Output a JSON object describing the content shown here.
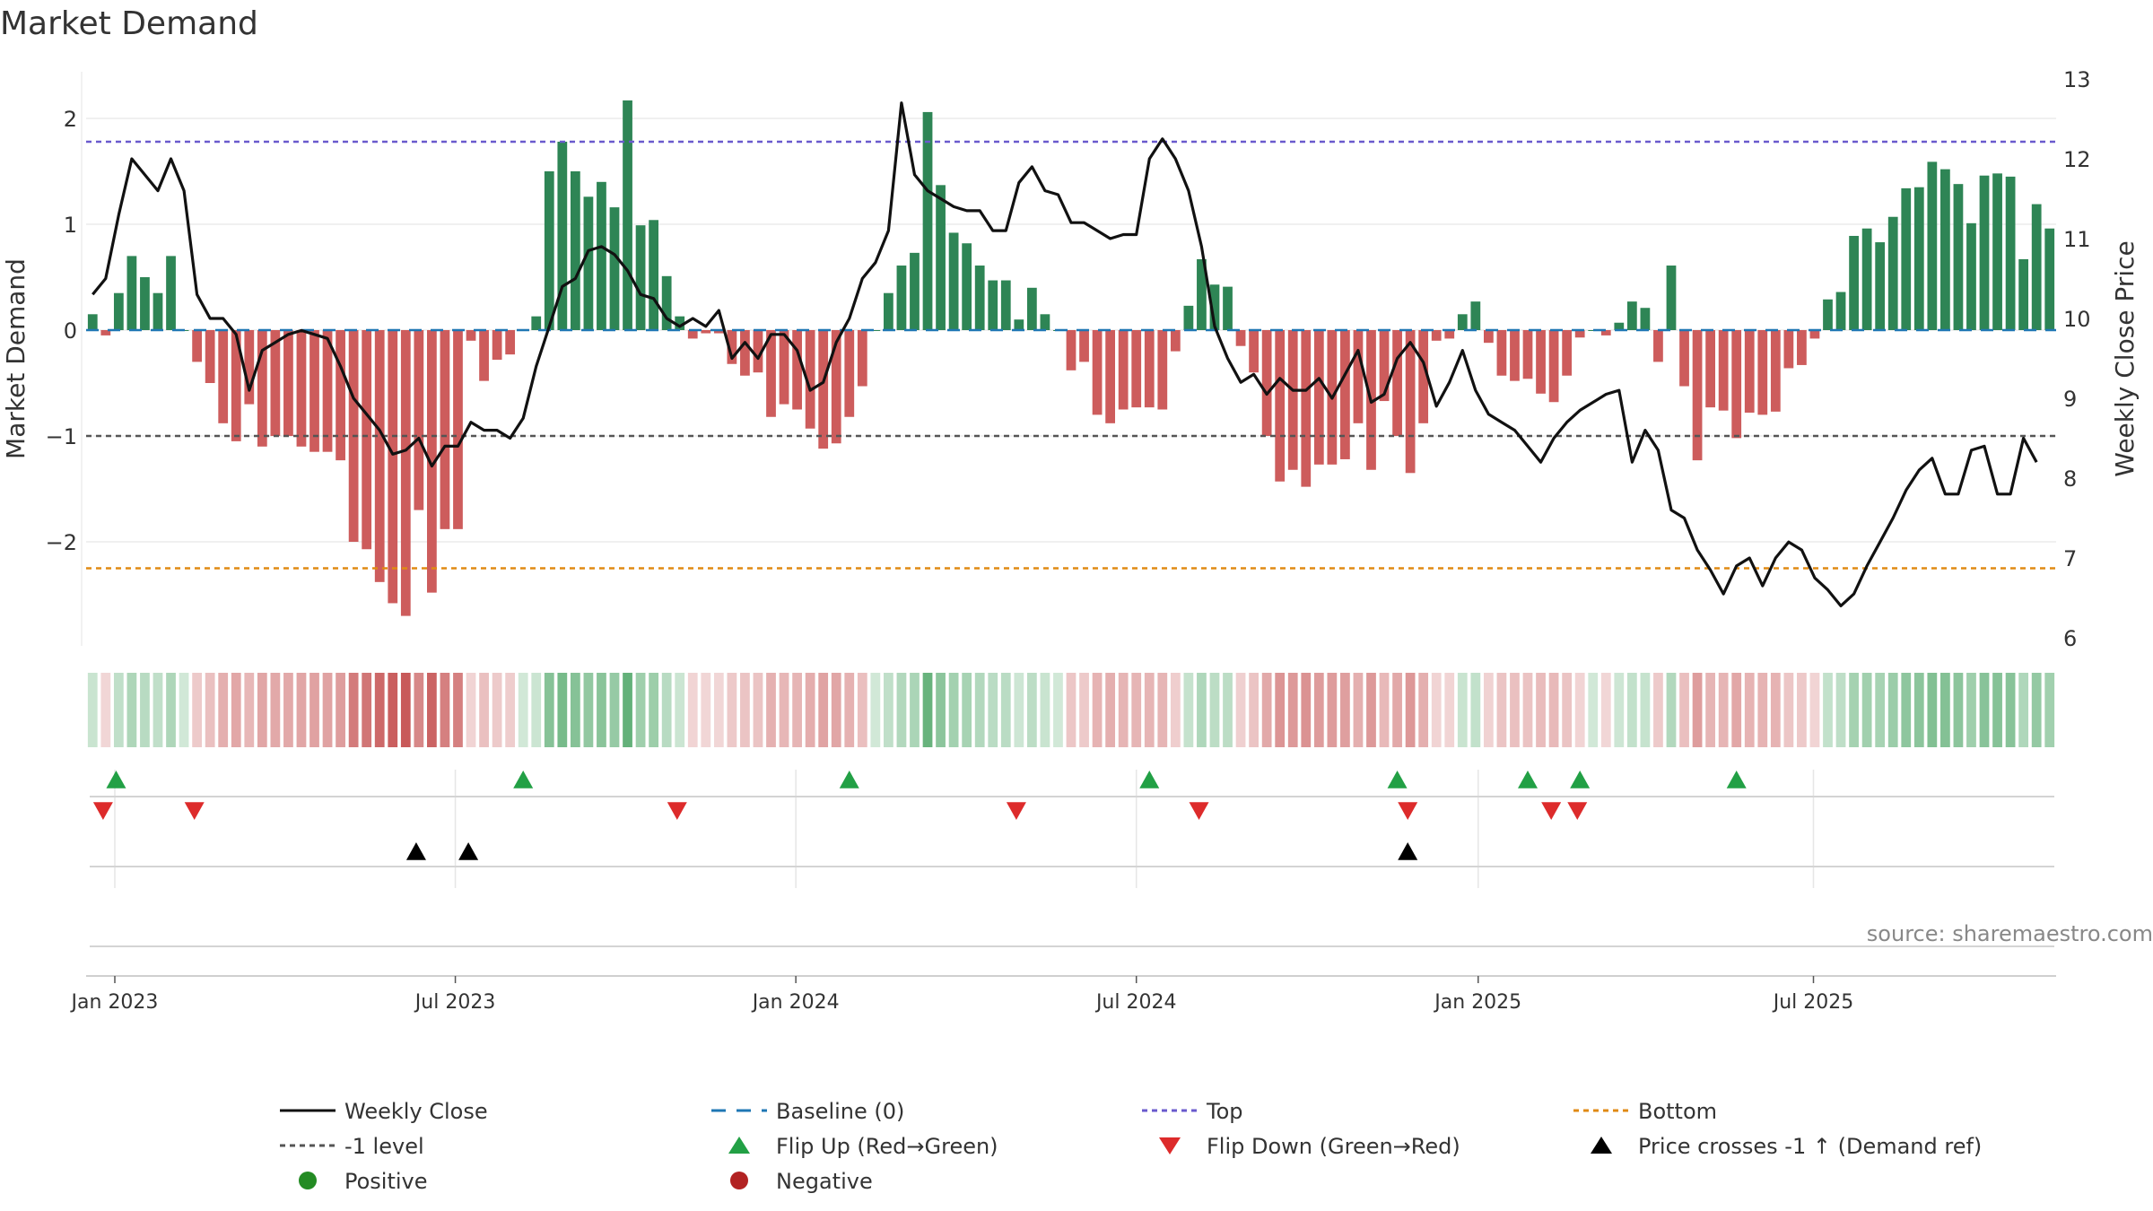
{
  "chart_data": {
    "type": "bar+line",
    "title": "Market Demand",
    "ylabel_left": "Market Demand",
    "ylabel_right": "Weekly Close Price",
    "source": "source: sharemaestro.com",
    "ylim_left": [
      -3.0,
      2.3
    ],
    "ylim_right": [
      6,
      13
    ],
    "left_ticks": [
      {
        "v": 2,
        "l": "2"
      },
      {
        "v": 1,
        "l": "1"
      },
      {
        "v": 0,
        "l": "0"
      },
      {
        "v": -1,
        "l": "−1"
      },
      {
        "v": -2,
        "l": "−2"
      }
    ],
    "right_ticks": [
      {
        "v": 13,
        "l": "13"
      },
      {
        "v": 12,
        "l": "12"
      },
      {
        "v": 11,
        "l": "11"
      },
      {
        "v": 10,
        "l": "10"
      },
      {
        "v": 9,
        "l": "9"
      },
      {
        "v": 8,
        "l": "8"
      },
      {
        "v": 7,
        "l": "7"
      },
      {
        "v": 6,
        "l": "6"
      }
    ],
    "x_ticks": [
      {
        "week": 2.2,
        "label": "Jan 2023"
      },
      {
        "week": 28.3,
        "label": "Jul 2023"
      },
      {
        "week": 54.4,
        "label": "Jan 2024"
      },
      {
        "week": 80.5,
        "label": "Jul 2024"
      },
      {
        "week": 106.7,
        "label": "Jan 2025"
      },
      {
        "week": 132.4,
        "label": "Jul 2025"
      }
    ],
    "reference_lines": {
      "top": 1.78,
      "minus1": -1.0,
      "bottom": -2.25,
      "baseline": 0
    },
    "demand": [
      0.15,
      -0.05,
      0.35,
      0.7,
      0.5,
      0.35,
      0.7,
      0.0,
      -0.3,
      -0.5,
      -0.88,
      -1.05,
      -0.7,
      -1.1,
      -1.0,
      -1.0,
      -1.1,
      -1.15,
      -1.15,
      -1.23,
      -2.0,
      -2.07,
      -2.38,
      -2.58,
      -2.7,
      -1.7,
      -2.48,
      -1.88,
      -1.88,
      -0.1,
      -0.48,
      -0.28,
      -0.23,
      0.0,
      0.13,
      1.5,
      1.78,
      1.5,
      1.26,
      1.4,
      1.16,
      2.17,
      0.99,
      1.04,
      0.51,
      0.13,
      -0.08,
      -0.03,
      -0.03,
      -0.32,
      -0.43,
      -0.4,
      -0.82,
      -0.7,
      -0.75,
      -0.93,
      -1.12,
      -1.07,
      -0.82,
      -0.53,
      0.0,
      0.35,
      0.61,
      0.73,
      2.06,
      1.37,
      0.92,
      0.82,
      0.61,
      0.47,
      0.47,
      0.1,
      0.4,
      0.15,
      0.0,
      -0.38,
      -0.3,
      -0.8,
      -0.88,
      -0.75,
      -0.73,
      -0.73,
      -0.75,
      -0.2,
      0.23,
      0.67,
      0.43,
      0.41,
      -0.15,
      -0.4,
      -1.0,
      -1.43,
      -1.32,
      -1.48,
      -1.27,
      -1.27,
      -1.22,
      -0.88,
      -1.32,
      -0.67,
      -1.0,
      -1.35,
      -0.88,
      -0.1,
      -0.08,
      0.15,
      0.27,
      -0.12,
      -0.43,
      -0.48,
      -0.46,
      -0.6,
      -0.68,
      -0.43,
      -0.07,
      0.0,
      -0.05,
      0.07,
      0.27,
      0.21,
      -0.3,
      0.61,
      -0.53,
      -1.23,
      -0.73,
      -0.76,
      -1.02,
      -0.78,
      -0.8,
      -0.77,
      -0.36,
      -0.33,
      -0.08,
      0.29,
      0.36,
      0.89,
      0.96,
      0.83,
      1.07,
      1.34,
      1.35,
      1.59,
      1.52,
      1.38,
      1.01,
      1.46,
      1.48,
      1.45,
      0.67,
      1.19,
      0.96
    ],
    "close": [
      10.3,
      10.5,
      11.3,
      12.0,
      11.8,
      11.6,
      12.0,
      11.6,
      10.3,
      10.0,
      10.0,
      9.8,
      9.1,
      9.6,
      9.7,
      9.8,
      9.85,
      9.8,
      9.75,
      9.4,
      9.0,
      8.8,
      8.6,
      8.3,
      8.35,
      8.5,
      8.15,
      8.4,
      8.4,
      8.7,
      8.6,
      8.6,
      8.5,
      8.75,
      9.4,
      9.9,
      10.4,
      10.5,
      10.85,
      10.9,
      10.8,
      10.6,
      10.3,
      10.25,
      10.0,
      9.9,
      10.0,
      9.9,
      10.1,
      9.5,
      9.7,
      9.5,
      9.8,
      9.8,
      9.6,
      9.1,
      9.2,
      9.7,
      10.0,
      10.5,
      10.7,
      11.1,
      12.7,
      11.8,
      11.6,
      11.5,
      11.4,
      11.35,
      11.35,
      11.1,
      11.1,
      11.7,
      11.9,
      11.6,
      11.55,
      11.2,
      11.2,
      11.1,
      11.0,
      11.05,
      11.05,
      12.0,
      12.25,
      12.0,
      11.6,
      10.9,
      9.9,
      9.5,
      9.2,
      9.3,
      9.05,
      9.25,
      9.1,
      9.1,
      9.25,
      9.0,
      9.3,
      9.6,
      8.95,
      9.05,
      9.5,
      9.7,
      9.45,
      8.9,
      9.2,
      9.6,
      9.1,
      8.8,
      8.7,
      8.6,
      8.4,
      8.2,
      8.5,
      8.7,
      8.85,
      8.95,
      9.05,
      9.1,
      8.2,
      8.6,
      8.35,
      7.6,
      7.5,
      7.1,
      6.85,
      6.55,
      6.9,
      7.0,
      6.65,
      7.0,
      7.2,
      7.1,
      6.75,
      6.6,
      6.4,
      6.55,
      6.9,
      7.2,
      7.5,
      7.85,
      8.1,
      8.25,
      7.8,
      7.8,
      8.35,
      8.4,
      7.8,
      7.8,
      8.5,
      8.2
    ],
    "flip_up_weeks": [
      2.3,
      33.5,
      58.5,
      81.5,
      100.5,
      110.5,
      114.5,
      126.5
    ],
    "flip_down_weeks": [
      1.3,
      8.3,
      45.3,
      71.3,
      85.3,
      101.3,
      112.3,
      114.3
    ],
    "cross_weeks": [
      25.3,
      29.3,
      101.3
    ],
    "legend": [
      {
        "key": "line",
        "color": "#111111",
        "label": "Weekly Close"
      },
      {
        "key": "dash",
        "color": "#1f77b4",
        "label": "Baseline (0)"
      },
      {
        "key": "dot",
        "color": "#6a5acd",
        "label": "Top"
      },
      {
        "key": "dot",
        "color": "#e08a14",
        "label": "Bottom"
      },
      {
        "key": "dot",
        "color": "#555555",
        "label": "-1 level"
      },
      {
        "key": "tri-up",
        "color": "#22a045",
        "label": "Flip Up (Red→Green)"
      },
      {
        "key": "tri-down",
        "color": "#dd2b2b",
        "label": "Flip Down (Green→Red)"
      },
      {
        "key": "tri-up",
        "color": "#000000",
        "label": "Price crosses -1 ↑ (Demand ref)"
      },
      {
        "key": "circle",
        "color": "#238b23",
        "label": "Positive"
      },
      {
        "key": "circle",
        "color": "#b22222",
        "label": "Negative"
      }
    ],
    "colors": {
      "positive": "#2e8555",
      "negative": "#cd5c5c",
      "line": "#111111",
      "top": "#6a5acd",
      "bottom": "#e08a14",
      "minus1": "#555555",
      "baseline": "#1f77b4"
    }
  }
}
